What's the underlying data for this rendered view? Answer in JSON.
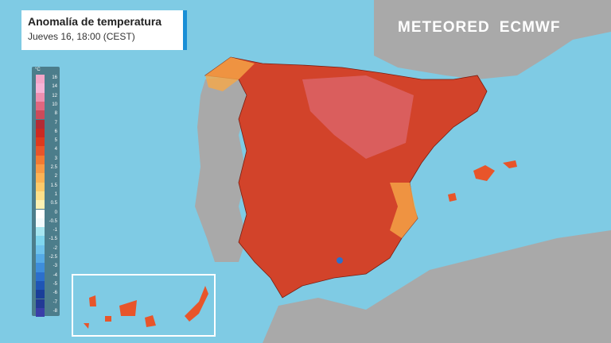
{
  "header": {
    "title": "Anomalía de temperatura",
    "subtitle": "Jueves 16, 18:00 (CEST)"
  },
  "logos": {
    "meteored": "METEORED",
    "ecmwf": "ECMWF"
  },
  "legend": {
    "unit": "°C",
    "labels": [
      "16",
      "14",
      "12",
      "10",
      "8",
      "7",
      "6",
      "5",
      "4",
      "3",
      "2.5",
      "2",
      "1.5",
      "1",
      "0.5",
      "0",
      "-0.5",
      "-1",
      "-1.5",
      "-2",
      "-2.5",
      "-3",
      "-4",
      "-5",
      "-6",
      "-7",
      "-8"
    ],
    "colors": [
      "#f4a6c8",
      "#f7b3d6",
      "#ee8fb0",
      "#e0677f",
      "#cc4b5a",
      "#b32c35",
      "#cc2a22",
      "#dd3a1e",
      "#e8552a",
      "#f27a32",
      "#f79a45",
      "#fbb355",
      "#fcca6a",
      "#fde08a",
      "#fdf2b4",
      "#ffffff",
      "#f2fbfd",
      "#a6e6f0",
      "#7fd6ee",
      "#6ec3ec",
      "#55aae6",
      "#3e8ddb",
      "#2c6fcc",
      "#1f55b5",
      "#1a3f99",
      "#223a95",
      "#3a3ea8"
    ]
  },
  "colors": {
    "sea": "#7fcbe4",
    "land": "#a9a9a9",
    "anomaly_high": "#c8371f",
    "anomaly_mid": "#e8552a",
    "anomaly_low": "#fcca6a"
  }
}
